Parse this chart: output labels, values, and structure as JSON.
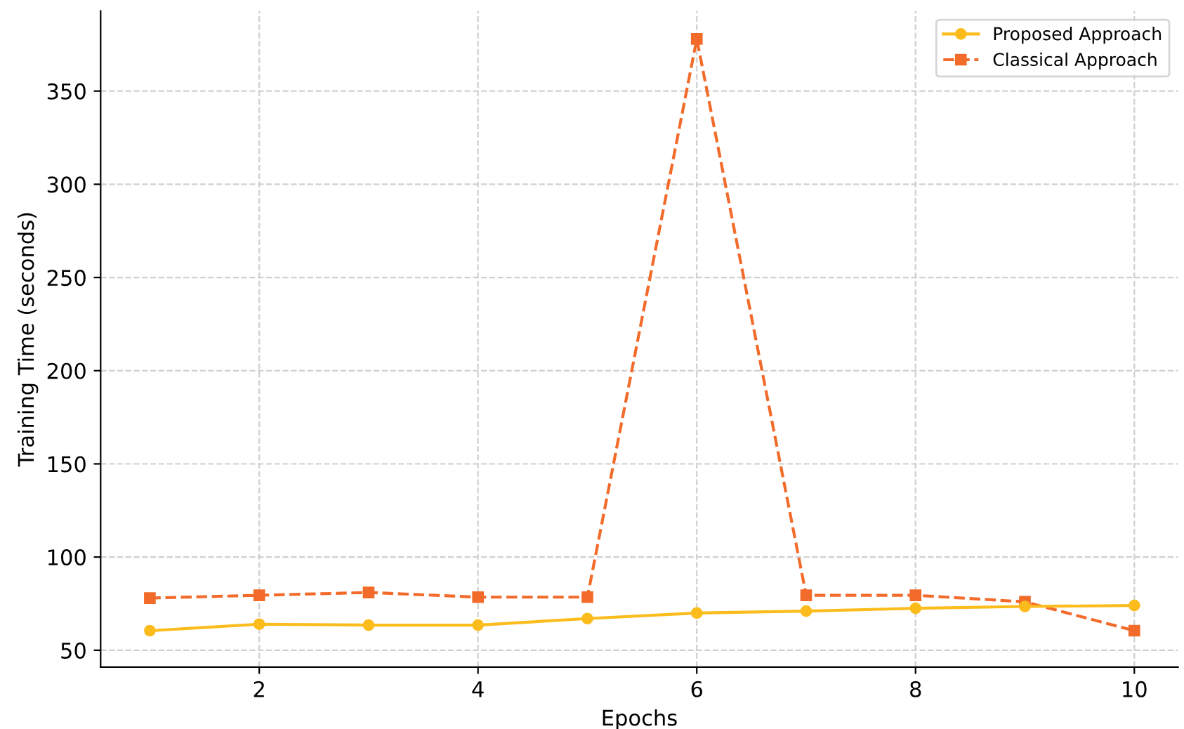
{
  "chart_data": {
    "type": "line",
    "xlabel": "Epochs",
    "ylabel": "Training Time (seconds)",
    "x": [
      1,
      2,
      3,
      4,
      5,
      6,
      7,
      8,
      9,
      10
    ],
    "series": [
      {
        "name": "Proposed Approach",
        "color": "#fbbc1c",
        "marker": "circle",
        "line_style": "solid",
        "values": [
          60.5,
          64,
          63.5,
          63.5,
          67,
          70,
          71,
          72.5,
          73.5,
          74
        ]
      },
      {
        "name": "Classical Approach",
        "color": "#f26b2a",
        "marker": "square",
        "line_style": "dashed",
        "values": [
          78,
          79.5,
          81,
          78.5,
          78.5,
          378,
          79.5,
          79.5,
          76,
          60.5
        ]
      }
    ],
    "xlim": [
      0.55,
      10.4
    ],
    "xticks": [
      2,
      4,
      6,
      8,
      10
    ],
    "ylim": [
      41,
      393
    ],
    "yticks": [
      50,
      100,
      150,
      200,
      250,
      300,
      350
    ],
    "grid": true,
    "legend": "top right"
  }
}
